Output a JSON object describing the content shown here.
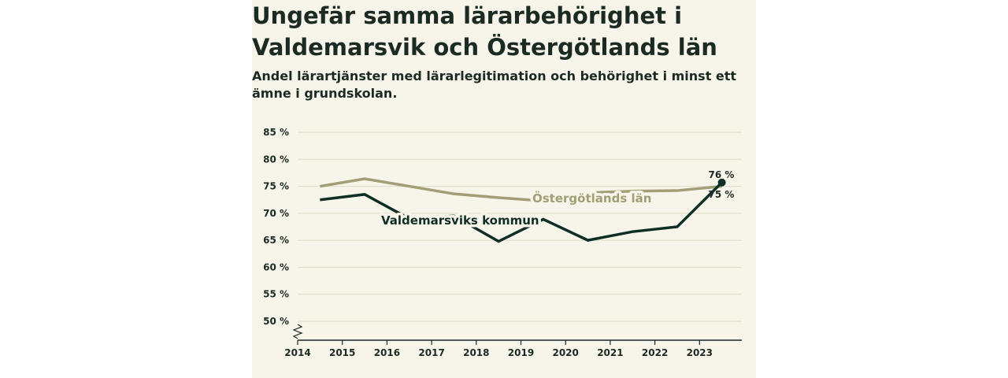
{
  "chart_data": {
    "type": "line",
    "title": "Ungefär samma lärarbehörighet i Valdemarsvik och Östergötlands län",
    "subtitle": "Andel lärartjänster med lärarlegitimation och behörighet i minst ett ämne i grundskolan.",
    "x": [
      "2014",
      "2015",
      "2016",
      "2017",
      "2018",
      "2019",
      "2020",
      "2021",
      "2022",
      "2023"
    ],
    "ylim": [
      50,
      85
    ],
    "yticks": [
      50,
      55,
      60,
      65,
      70,
      75,
      80,
      85
    ],
    "y_tick_suffix": " %",
    "axis_break": true,
    "grid": true,
    "series": [
      {
        "name": "Östergötlands län",
        "color": "#a29e76",
        "values": [
          75.0,
          76.4,
          75.0,
          73.6,
          72.9,
          72.3,
          73.8,
          74.1,
          74.2,
          75.0
        ],
        "end_label": "75 %"
      },
      {
        "name": "Valdemarsviks kommun",
        "color": "#0f2e26",
        "values": [
          72.5,
          73.5,
          69.0,
          69.5,
          64.8,
          68.9,
          65.0,
          66.6,
          67.5,
          75.7
        ],
        "end_label": "76 %"
      }
    ]
  }
}
